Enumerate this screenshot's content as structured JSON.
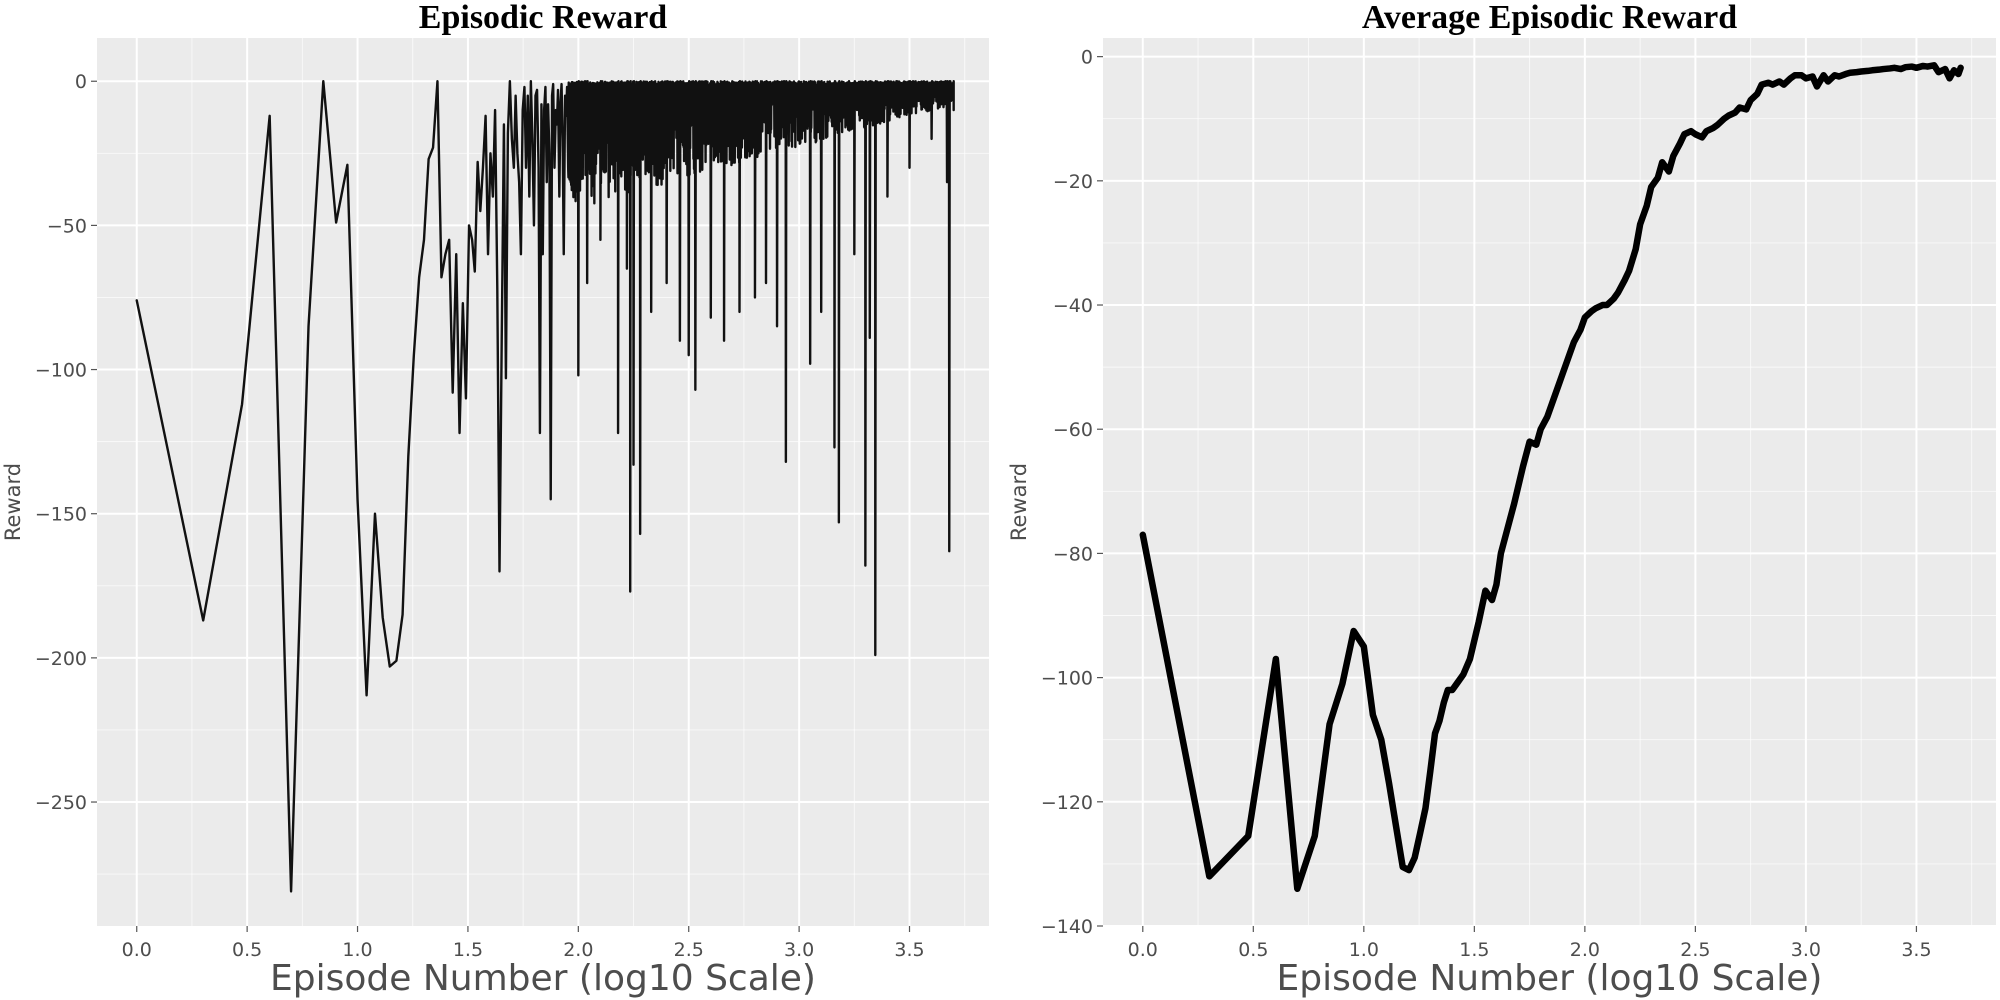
{
  "chart_data": [
    {
      "type": "line",
      "title": "Episodic Reward",
      "xlabel": "Episode Number (log10 Scale)",
      "ylabel": "Reward",
      "xlim": [
        -0.18,
        3.86
      ],
      "ylim": [
        -293,
        15
      ],
      "xticks": [
        0.0,
        0.5,
        1.0,
        1.5,
        2.0,
        2.5,
        3.0,
        3.5
      ],
      "xtick_labels": [
        "0.0",
        "0.5",
        "1.0",
        "1.5",
        "2.0",
        "2.5",
        "3.0",
        "3.5"
      ],
      "yticks": [
        0,
        -50,
        -100,
        -150,
        -200,
        -250
      ],
      "ytick_labels": [
        "0",
        "−50",
        "−100",
        "−150",
        "−200",
        "−250"
      ],
      "grid": true,
      "line_color": "#111111",
      "series": [
        {
          "x": [
            0.0,
            0.301,
            0.477,
            0.602,
            0.699,
            0.778,
            0.845,
            0.903,
            0.954,
            1.0,
            1.041,
            1.079,
            1.114,
            1.146,
            1.176,
            1.204,
            1.23,
            1.255,
            1.279,
            1.301,
            1.322,
            1.342,
            1.362,
            1.38,
            1.398,
            1.415,
            1.431,
            1.447,
            1.462,
            1.477,
            1.491,
            1.505,
            1.519,
            1.531,
            1.544,
            1.556,
            1.568,
            1.58,
            1.591,
            1.602,
            1.613,
            1.623,
            1.633,
            1.643,
            1.653,
            1.663,
            1.672,
            1.681,
            1.69,
            1.699,
            1.708,
            1.716,
            1.724,
            1.732,
            1.74,
            1.748,
            1.756,
            1.763,
            1.771,
            1.778,
            1.785,
            1.792,
            1.799,
            1.806,
            1.813,
            1.82,
            1.826,
            1.833,
            1.839,
            1.845,
            1.851,
            1.857,
            1.863,
            1.869,
            1.875,
            1.881,
            1.886,
            1.892,
            1.898,
            1.903,
            1.908,
            1.914,
            1.919,
            1.924,
            1.929,
            1.934,
            1.94,
            1.945,
            1.949,
            1.954
          ],
          "y": [
            -76,
            -187,
            -112,
            -12,
            -281,
            -85,
            0,
            -49,
            -29,
            -145,
            -213,
            -150,
            -186,
            -203,
            -201,
            -185,
            -130,
            -95,
            -68,
            -55,
            -27,
            -23,
            0,
            -68,
            -60,
            -55,
            -108,
            -60,
            -122,
            -77,
            -110,
            -50,
            -55,
            -66,
            -28,
            -45,
            -30,
            -12,
            -60,
            -25,
            -40,
            -10,
            -72,
            -170,
            -90,
            -15,
            -103,
            -18,
            0,
            -20,
            -30,
            -5,
            -25,
            -35,
            -60,
            -10,
            -2,
            -30,
            -5,
            -40,
            0,
            -20,
            -50,
            -5,
            -3,
            -30,
            -122,
            -8,
            -60,
            -10,
            -2,
            -35,
            -8,
            -25,
            -145,
            -5,
            -1,
            -30,
            -10,
            -15,
            -3,
            -40,
            -8,
            -1,
            -20,
            -60,
            -5,
            -12,
            -2,
            -30
          ]
        }
      ],
      "dense_band": {
        "x_start": 1.954,
        "x_end": 3.7,
        "upper": 0,
        "band_low_start": -45,
        "band_low_end": -8,
        "spikes": [
          {
            "x": 2.0,
            "y": -102
          },
          {
            "x": 2.04,
            "y": -70
          },
          {
            "x": 2.1,
            "y": -55
          },
          {
            "x": 2.18,
            "y": -122
          },
          {
            "x": 2.22,
            "y": -65
          },
          {
            "x": 2.235,
            "y": -177
          },
          {
            "x": 2.25,
            "y": -133
          },
          {
            "x": 2.28,
            "y": -157
          },
          {
            "x": 2.33,
            "y": -80
          },
          {
            "x": 2.4,
            "y": -70
          },
          {
            "x": 2.46,
            "y": -90
          },
          {
            "x": 2.5,
            "y": -95
          },
          {
            "x": 2.53,
            "y": -107
          },
          {
            "x": 2.6,
            "y": -82
          },
          {
            "x": 2.66,
            "y": -90
          },
          {
            "x": 2.73,
            "y": -80
          },
          {
            "x": 2.8,
            "y": -75
          },
          {
            "x": 2.85,
            "y": -70
          },
          {
            "x": 2.9,
            "y": -85
          },
          {
            "x": 2.94,
            "y": -132
          },
          {
            "x": 3.05,
            "y": -98
          },
          {
            "x": 3.1,
            "y": -80
          },
          {
            "x": 3.16,
            "y": -127
          },
          {
            "x": 3.18,
            "y": -153
          },
          {
            "x": 3.25,
            "y": -60
          },
          {
            "x": 3.3,
            "y": -168
          },
          {
            "x": 3.32,
            "y": -89
          },
          {
            "x": 3.345,
            "y": -199
          },
          {
            "x": 3.4,
            "y": -40
          },
          {
            "x": 3.5,
            "y": -30
          },
          {
            "x": 3.6,
            "y": -20
          },
          {
            "x": 3.67,
            "y": -35
          },
          {
            "x": 3.68,
            "y": -163
          }
        ]
      }
    },
    {
      "type": "line",
      "title": "Average Episodic Reward",
      "xlabel": "Episode Number (log10 Scale)",
      "ylabel": "Reward",
      "xlim": [
        -0.18,
        3.86
      ],
      "ylim": [
        -140,
        3
      ],
      "xticks": [
        0.0,
        0.5,
        1.0,
        1.5,
        2.0,
        2.5,
        3.0,
        3.5
      ],
      "xtick_labels": [
        "0.0",
        "0.5",
        "1.0",
        "1.5",
        "2.0",
        "2.5",
        "3.0",
        "3.5"
      ],
      "yticks": [
        0,
        -20,
        -40,
        -60,
        -80,
        -100,
        -120,
        -140
      ],
      "ytick_labels": [
        "0",
        "−20",
        "−40",
        "−60",
        "−80",
        "−100",
        "−120",
        "−140"
      ],
      "grid": true,
      "line_color": "#000000",
      "series": [
        {
          "x": [
            0.0,
            0.301,
            0.477,
            0.602,
            0.699,
            0.778,
            0.845,
            0.903,
            0.954,
            1.0,
            1.041,
            1.079,
            1.114,
            1.146,
            1.176,
            1.204,
            1.23,
            1.255,
            1.279,
            1.301,
            1.322,
            1.342,
            1.362,
            1.38,
            1.4,
            1.42,
            1.45,
            1.48,
            1.5,
            1.52,
            1.55,
            1.58,
            1.6,
            1.62,
            1.65,
            1.68,
            1.7,
            1.72,
            1.75,
            1.78,
            1.8,
            1.83,
            1.85,
            1.88,
            1.9,
            1.93,
            1.95,
            1.98,
            2.0,
            2.03,
            2.05,
            2.08,
            2.1,
            2.13,
            2.15,
            2.18,
            2.2,
            2.23,
            2.25,
            2.28,
            2.3,
            2.33,
            2.35,
            2.38,
            2.4,
            2.43,
            2.45,
            2.48,
            2.5,
            2.53,
            2.55,
            2.58,
            2.6,
            2.63,
            2.65,
            2.68,
            2.7,
            2.73,
            2.75,
            2.78,
            2.8,
            2.83,
            2.85,
            2.88,
            2.9,
            2.93,
            2.95,
            2.98,
            3.0,
            3.03,
            3.05,
            3.08,
            3.1,
            3.13,
            3.15,
            3.18,
            3.2,
            3.23,
            3.25,
            3.28,
            3.3,
            3.33,
            3.35,
            3.38,
            3.4,
            3.43,
            3.45,
            3.48,
            3.5,
            3.53,
            3.55,
            3.58,
            3.6,
            3.63,
            3.65,
            3.67,
            3.69,
            3.7
          ],
          "y": [
            -77,
            -132,
            -125.5,
            -97,
            -134,
            -125.5,
            -107.5,
            -101,
            -92.5,
            -95,
            -106,
            -110,
            -117,
            -124,
            -130.5,
            -131,
            -129,
            -125,
            -121,
            -115,
            -109,
            -107,
            -104,
            -102,
            -102,
            -101,
            -99.5,
            -97,
            -94,
            -91,
            -86,
            -87.5,
            -85,
            -80,
            -76,
            -72,
            -69,
            -66,
            -62,
            -62.5,
            -60,
            -58,
            -56,
            -53,
            -51,
            -48,
            -46,
            -44,
            -42,
            -41,
            -40.5,
            -40,
            -40,
            -39,
            -38,
            -36,
            -34.5,
            -31,
            -27,
            -24,
            -21,
            -19.5,
            -17,
            -18.5,
            -16,
            -14,
            -12.5,
            -12,
            -12.5,
            -13,
            -12,
            -11.5,
            -11,
            -10,
            -9.5,
            -9,
            -8.2,
            -8.5,
            -7,
            -6,
            -4.5,
            -4.2,
            -4.5,
            -4,
            -4.5,
            -3.5,
            -3,
            -3,
            -3.5,
            -3.2,
            -4.8,
            -3,
            -4,
            -3,
            -3.2,
            -2.8,
            -2.6,
            -2.5,
            -2.4,
            -2.3,
            -2.2,
            -2.1,
            -2.0,
            -1.9,
            -1.8,
            -2.0,
            -1.7,
            -1.6,
            -1.8,
            -1.5,
            -1.6,
            -1.4,
            -2.5,
            -2.0,
            -3.5,
            -2.2,
            -2.8,
            -1.8
          ]
        }
      ]
    }
  ]
}
